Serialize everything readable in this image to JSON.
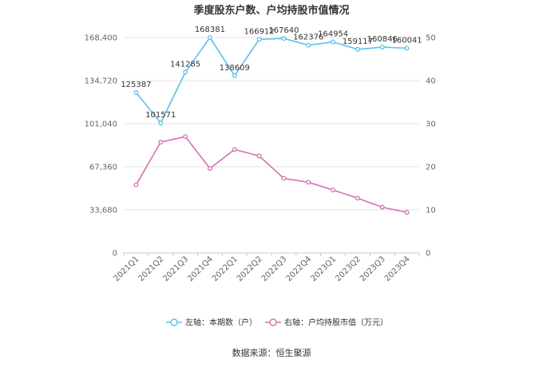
{
  "chart_data": {
    "type": "line",
    "title": "季度股东户数、户均持股市值情况",
    "categories": [
      "2021Q1",
      "2021Q2",
      "2021Q3",
      "2021Q4",
      "2022Q1",
      "2022Q2",
      "2022Q3",
      "2022Q4",
      "2023Q1",
      "2023Q2",
      "2023Q3",
      "2023Q4"
    ],
    "left_axis": {
      "ylim": [
        0,
        168400
      ],
      "ticks": [
        0,
        33680,
        67360,
        101040,
        134720,
        168400
      ],
      "tick_labels": [
        "0",
        "33,680",
        "67,360",
        "101,040",
        "134,720",
        "168,400"
      ]
    },
    "right_axis": {
      "ylim": [
        0,
        50
      ],
      "ticks": [
        0,
        10,
        20,
        30,
        40,
        50
      ],
      "tick_labels": [
        "0",
        "10",
        "20",
        "30",
        "40",
        "50"
      ]
    },
    "series": [
      {
        "name": "左轴：本期数（户）",
        "axis": "left",
        "color": "#5bc0eb",
        "values": [
          125387,
          101571,
          141285,
          168381,
          138609,
          166912,
          167640,
          162376,
          164954,
          159117,
          160846,
          160041
        ],
        "data_labels": [
          "125387",
          "101571",
          "141285",
          "168381",
          "138609",
          "166912",
          "167640",
          "162376",
          "164954",
          "159117",
          "160846",
          "160041"
        ]
      },
      {
        "name": "右轴：户均持股市值（万元）",
        "axis": "right",
        "color": "#d86fb2",
        "values": [
          15.8,
          25.7,
          27.0,
          19.6,
          24.0,
          22.5,
          17.3,
          16.4,
          14.6,
          12.7,
          10.6,
          9.4
        ]
      }
    ],
    "grid": true,
    "legend_position": "bottom"
  },
  "source": "数据来源：恒生聚源"
}
